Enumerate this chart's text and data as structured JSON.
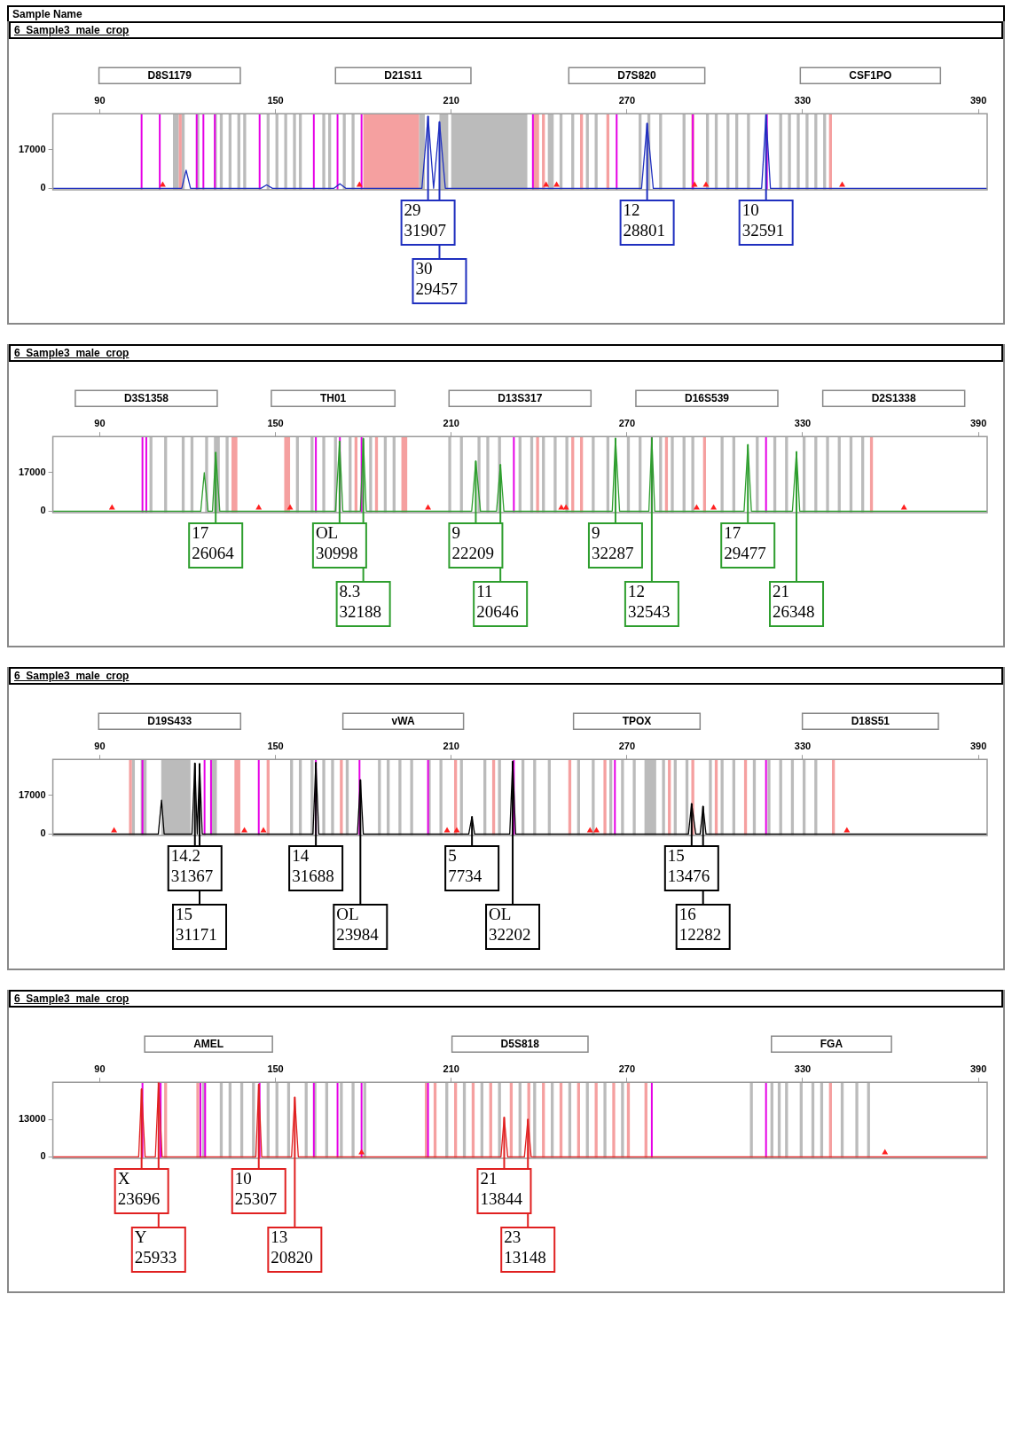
{
  "chart_data": [
    {
      "type": "line",
      "title": "6_Sample3_male_crop",
      "xlim": [
        74,
        393
      ],
      "xticks": [
        90,
        150,
        210,
        270,
        330,
        390
      ],
      "ylim": [
        0,
        33000
      ],
      "yticks": [
        0,
        17000
      ],
      "annotations": [
        "Sample Name",
        "D8S1179",
        "D21S11",
        "D7S820",
        "CSF1PO",
        {
          "text": "29\n31907",
          "x": 202.1,
          "y": 31907
        },
        {
          "text": "30\n29457",
          "x": 206.0,
          "y": 29457
        },
        {
          "text": "12\n28801",
          "x": 276.9,
          "y": 28801
        },
        {
          "text": "10\n32591",
          "x": 317.5,
          "y": 32591
        }
      ],
      "bands": [
        {
          "axis": "x",
          "from": 115,
          "to": 117,
          "color": "#bbbbbb"
        },
        {
          "axis": "x",
          "from": 118,
          "to": 119,
          "color": "#bbbbbb"
        },
        {
          "axis": "x",
          "from": 123,
          "to": 124,
          "color": "#bbbbbb"
        },
        {
          "axis": "x",
          "from": 129,
          "to": 130,
          "color": "#bbbbbb"
        },
        {
          "axis": "x",
          "from": 131,
          "to": 132,
          "color": "#bbbbbb"
        },
        {
          "axis": "x",
          "from": 134,
          "to": 135,
          "color": "#bbbbbb"
        },
        {
          "axis": "x",
          "from": 137,
          "to": 138,
          "color": "#bbbbbb"
        },
        {
          "axis": "x",
          "from": 139,
          "to": 140,
          "color": "#bbbbbb"
        },
        {
          "axis": "x",
          "from": 147,
          "to": 148,
          "color": "#bbbbbb"
        },
        {
          "axis": "x",
          "from": 150,
          "to": 151,
          "color": "#bbbbbb"
        },
        {
          "axis": "x",
          "from": 153,
          "to": 154,
          "color": "#bbbbbb"
        },
        {
          "axis": "x",
          "from": 156,
          "to": 157,
          "color": "#bbbbbb"
        },
        {
          "axis": "x",
          "from": 158,
          "to": 159,
          "color": "#bbbbbb"
        },
        {
          "axis": "x",
          "from": 166,
          "to": 167,
          "color": "#bbbbbb"
        },
        {
          "axis": "x",
          "from": 168,
          "to": 169,
          "color": "#bbbbbb"
        },
        {
          "axis": "x",
          "from": 173,
          "to": 174,
          "color": "#bbbbbb"
        },
        {
          "axis": "x",
          "from": 176,
          "to": 177,
          "color": "#bbbbbb"
        },
        {
          "axis": "x",
          "from": 199,
          "to": 201,
          "color": "#bbbbbb"
        },
        {
          "axis": "x",
          "from": 206,
          "to": 209,
          "color": "#bbbbbb"
        },
        {
          "axis": "x",
          "from": 210,
          "to": 236,
          "color": "#bbbbbb"
        },
        {
          "axis": "x",
          "from": 243,
          "to": 245,
          "color": "#bbbbbb"
        },
        {
          "axis": "x",
          "from": 247,
          "to": 248,
          "color": "#bbbbbb"
        },
        {
          "axis": "x",
          "from": 251,
          "to": 252,
          "color": "#bbbbbb"
        },
        {
          "axis": "x",
          "from": 256,
          "to": 257,
          "color": "#bbbbbb"
        },
        {
          "axis": "x",
          "from": 259,
          "to": 260,
          "color": "#bbbbbb"
        },
        {
          "axis": "x",
          "from": 274,
          "to": 275,
          "color": "#bbbbbb"
        },
        {
          "axis": "x",
          "from": 277,
          "to": 278,
          "color": "#bbbbbb"
        },
        {
          "axis": "x",
          "from": 281,
          "to": 282,
          "color": "#bbbbbb"
        },
        {
          "axis": "x",
          "from": 289,
          "to": 290,
          "color": "#bbbbbb"
        },
        {
          "axis": "x",
          "from": 297,
          "to": 298,
          "color": "#bbbbbb"
        },
        {
          "axis": "x",
          "from": 300,
          "to": 301,
          "color": "#bbbbbb"
        },
        {
          "axis": "x",
          "from": 304,
          "to": 305,
          "color": "#bbbbbb"
        },
        {
          "axis": "x",
          "from": 307,
          "to": 308,
          "color": "#bbbbbb"
        },
        {
          "axis": "x",
          "from": 311,
          "to": 312,
          "color": "#bbbbbb"
        },
        {
          "axis": "x",
          "from": 322,
          "to": 323,
          "color": "#bbbbbb"
        },
        {
          "axis": "x",
          "from": 325,
          "to": 326,
          "color": "#bbbbbb"
        },
        {
          "axis": "x",
          "from": 328,
          "to": 329,
          "color": "#bbbbbb"
        },
        {
          "axis": "x",
          "from": 331,
          "to": 332,
          "color": "#bbbbbb"
        },
        {
          "axis": "x",
          "from": 334,
          "to": 335,
          "color": "#bbbbbb"
        },
        {
          "axis": "x",
          "from": 337,
          "to": 338,
          "color": "#bbbbbb"
        },
        {
          "axis": "x",
          "from": 117,
          "to": 118,
          "color": "#f5a0a0"
        },
        {
          "axis": "x",
          "from": 180,
          "to": 199,
          "color": "#f5a0a0"
        },
        {
          "axis": "x",
          "from": 238,
          "to": 240,
          "color": "#f5a0a0"
        },
        {
          "axis": "x",
          "from": 241,
          "to": 242,
          "color": "#f5a0a0"
        },
        {
          "axis": "x",
          "from": 254,
          "to": 255,
          "color": "#f5a0a0"
        },
        {
          "axis": "x",
          "from": 263,
          "to": 264,
          "color": "#f5a0a0"
        },
        {
          "axis": "x",
          "from": 292,
          "to": 293,
          "color": "#f5a0a0"
        },
        {
          "axis": "x",
          "from": 339,
          "to": 340,
          "color": "#f5a0a0"
        }
      ],
      "ref_lines": [
        {
          "axis": "x",
          "value": 104.3,
          "color": "#e600e6"
        },
        {
          "axis": "x",
          "value": 110.5,
          "color": "#e600e6"
        },
        {
          "axis": "x",
          "value": 123.1,
          "color": "#e600e6"
        },
        {
          "axis": "x",
          "value": 125.4,
          "color": "#e600e6"
        },
        {
          "axis": "x",
          "value": 129.3,
          "color": "#e600e6"
        },
        {
          "axis": "x",
          "value": 144.6,
          "color": "#e600e6"
        },
        {
          "axis": "x",
          "value": 163.1,
          "color": "#e600e6"
        },
        {
          "axis": "x",
          "value": 171.2,
          "color": "#e600e6"
        },
        {
          "axis": "x",
          "value": 179.4,
          "color": "#e600e6"
        },
        {
          "axis": "x",
          "value": 237.9,
          "color": "#e600e6"
        },
        {
          "axis": "x",
          "value": 266.5,
          "color": "#e600e6"
        },
        {
          "axis": "x",
          "value": 292.5,
          "color": "#e600e6"
        },
        {
          "axis": "x",
          "value": 317.8,
          "color": "#e600e6"
        }
      ],
      "series": [
        {
          "type": "line",
          "color": "#1f2fbf",
          "x": [
            74,
            118,
            119.5,
            121,
            145,
            147,
            149,
            170,
            172,
            174,
            200,
            202.1,
            204,
            206,
            208,
            275,
            276.9,
            279,
            316,
            317.5,
            319,
            393
          ],
          "values": [
            0,
            0,
            8000,
            0,
            0,
            1500,
            0,
            0,
            2000,
            0,
            0,
            31907,
            0,
            29457,
            0,
            0,
            28801,
            0,
            0,
            32591,
            0,
            0
          ]
        },
        {
          "type": "scatter",
          "marker": "triangle",
          "color": "#ff2020",
          "x": [
            111.5,
            178.7,
            242.4,
            246.0,
            293.1,
            297.0,
            343.5
          ],
          "values": [
            1500,
            1500,
            1500,
            1500,
            1500,
            1500,
            1500
          ]
        }
      ]
    },
    {
      "type": "line",
      "title": "6_Sample3_male_crop",
      "xlim": [
        74,
        393
      ],
      "xticks": [
        90,
        150,
        210,
        270,
        330,
        390
      ],
      "ylim": [
        0,
        33000
      ],
      "yticks": [
        0,
        17000
      ],
      "annotations": [
        "D3S1358",
        "TH01",
        "D13S317",
        "D16S539",
        "D2S1338",
        {
          "text": "17\n26064",
          "x": 129.6,
          "y": 26064
        },
        {
          "text": "OL\n30998",
          "x": 171.9,
          "y": 30998
        },
        {
          "text": "8.3\n32188",
          "x": 180.0,
          "y": 32188
        },
        {
          "text": "9\n22209",
          "x": 218.4,
          "y": 22209
        },
        {
          "text": "11\n20646",
          "x": 226.8,
          "y": 20646
        },
        {
          "text": "9\n32287",
          "x": 266.1,
          "y": 32287
        },
        {
          "text": "12\n32543",
          "x": 278.5,
          "y": 32543
        },
        {
          "text": "17\n29477",
          "x": 311.3,
          "y": 29477
        },
        {
          "text": "21\n26348",
          "x": 327.9,
          "y": 26348
        }
      ],
      "bands": [
        {
          "axis": "x",
          "from": 107,
          "to": 108,
          "color": "#bbbbbb"
        },
        {
          "axis": "x",
          "from": 112,
          "to": 113,
          "color": "#bbbbbb"
        },
        {
          "axis": "x",
          "from": 118,
          "to": 119,
          "color": "#bbbbbb"
        },
        {
          "axis": "x",
          "from": 121,
          "to": 122,
          "color": "#bbbbbb"
        },
        {
          "axis": "x",
          "from": 126,
          "to": 127,
          "color": "#bbbbbb"
        },
        {
          "axis": "x",
          "from": 129,
          "to": 131,
          "color": "#bbbbbb"
        },
        {
          "axis": "x",
          "from": 133,
          "to": 134,
          "color": "#bbbbbb"
        },
        {
          "axis": "x",
          "from": 157,
          "to": 158,
          "color": "#bbbbbb"
        },
        {
          "axis": "x",
          "from": 162,
          "to": 163,
          "color": "#bbbbbb"
        },
        {
          "axis": "x",
          "from": 166,
          "to": 167,
          "color": "#bbbbbb"
        },
        {
          "axis": "x",
          "from": 170,
          "to": 171,
          "color": "#bbbbbb"
        },
        {
          "axis": "x",
          "from": 175,
          "to": 176,
          "color": "#bbbbbb"
        },
        {
          "axis": "x",
          "from": 182,
          "to": 183,
          "color": "#bbbbbb"
        },
        {
          "axis": "x",
          "from": 187,
          "to": 188,
          "color": "#bbbbbb"
        },
        {
          "axis": "x",
          "from": 190,
          "to": 191,
          "color": "#bbbbbb"
        },
        {
          "axis": "x",
          "from": 209,
          "to": 210,
          "color": "#bbbbbb"
        },
        {
          "axis": "x",
          "from": 213,
          "to": 214,
          "color": "#bbbbbb"
        },
        {
          "axis": "x",
          "from": 219,
          "to": 220,
          "color": "#bbbbbb"
        },
        {
          "axis": "x",
          "from": 222,
          "to": 223,
          "color": "#bbbbbb"
        },
        {
          "axis": "x",
          "from": 226,
          "to": 227,
          "color": "#bbbbbb"
        },
        {
          "axis": "x",
          "from": 233,
          "to": 234,
          "color": "#bbbbbb"
        },
        {
          "axis": "x",
          "from": 237,
          "to": 238,
          "color": "#bbbbbb"
        },
        {
          "axis": "x",
          "from": 241,
          "to": 242,
          "color": "#bbbbbb"
        },
        {
          "axis": "x",
          "from": 245,
          "to": 246,
          "color": "#bbbbbb"
        },
        {
          "axis": "x",
          "from": 249,
          "to": 250,
          "color": "#bbbbbb"
        },
        {
          "axis": "x",
          "from": 258,
          "to": 259,
          "color": "#bbbbbb"
        },
        {
          "axis": "x",
          "from": 263,
          "to": 264,
          "color": "#bbbbbb"
        },
        {
          "axis": "x",
          "from": 270,
          "to": 271,
          "color": "#bbbbbb"
        },
        {
          "axis": "x",
          "from": 274,
          "to": 275,
          "color": "#bbbbbb"
        },
        {
          "axis": "x",
          "from": 281,
          "to": 282,
          "color": "#bbbbbb"
        },
        {
          "axis": "x",
          "from": 285,
          "to": 286,
          "color": "#bbbbbb"
        },
        {
          "axis": "x",
          "from": 289,
          "to": 290,
          "color": "#bbbbbb"
        },
        {
          "axis": "x",
          "from": 292,
          "to": 293,
          "color": "#bbbbbb"
        },
        {
          "axis": "x",
          "from": 302,
          "to": 303,
          "color": "#bbbbbb"
        },
        {
          "axis": "x",
          "from": 306,
          "to": 307,
          "color": "#bbbbbb"
        },
        {
          "axis": "x",
          "from": 314,
          "to": 315,
          "color": "#bbbbbb"
        },
        {
          "axis": "x",
          "from": 320,
          "to": 321,
          "color": "#bbbbbb"
        },
        {
          "axis": "x",
          "from": 324,
          "to": 325,
          "color": "#bbbbbb"
        },
        {
          "axis": "x",
          "from": 330,
          "to": 331,
          "color": "#bbbbbb"
        },
        {
          "axis": "x",
          "from": 334,
          "to": 335,
          "color": "#bbbbbb"
        },
        {
          "axis": "x",
          "from": 338,
          "to": 339,
          "color": "#bbbbbb"
        },
        {
          "axis": "x",
          "from": 342,
          "to": 343,
          "color": "#bbbbbb"
        },
        {
          "axis": "x",
          "from": 346,
          "to": 347,
          "color": "#bbbbbb"
        },
        {
          "axis": "x",
          "from": 350,
          "to": 351,
          "color": "#bbbbbb"
        },
        {
          "axis": "x",
          "from": 135,
          "to": 137,
          "color": "#f5a0a0"
        },
        {
          "axis": "x",
          "from": 153,
          "to": 155,
          "color": "#f5a0a0"
        },
        {
          "axis": "x",
          "from": 177,
          "to": 178,
          "color": "#f5a0a0"
        },
        {
          "axis": "x",
          "from": 184,
          "to": 185,
          "color": "#f5a0a0"
        },
        {
          "axis": "x",
          "from": 193,
          "to": 195,
          "color": "#f5a0a0"
        },
        {
          "axis": "x",
          "from": 239,
          "to": 240,
          "color": "#f5a0a0"
        },
        {
          "axis": "x",
          "from": 251,
          "to": 252,
          "color": "#f5a0a0"
        },
        {
          "axis": "x",
          "from": 254,
          "to": 255,
          "color": "#f5a0a0"
        },
        {
          "axis": "x",
          "from": 283,
          "to": 284,
          "color": "#f5a0a0"
        },
        {
          "axis": "x",
          "from": 296,
          "to": 297,
          "color": "#f5a0a0"
        },
        {
          "axis": "x",
          "from": 353,
          "to": 354,
          "color": "#f5a0a0"
        }
      ],
      "ref_lines": [
        {
          "axis": "x",
          "value": 104.6,
          "color": "#e600e6"
        },
        {
          "axis": "x",
          "value": 105.9,
          "color": "#e600e6"
        },
        {
          "axis": "x",
          "value": 163.8,
          "color": "#e600e6"
        },
        {
          "axis": "x",
          "value": 172.0,
          "color": "#e600e6"
        },
        {
          "axis": "x",
          "value": 179.4,
          "color": "#e600e6"
        },
        {
          "axis": "x",
          "value": 231.4,
          "color": "#e600e6"
        },
        {
          "axis": "x",
          "value": 278.5,
          "color": "#e600e6"
        },
        {
          "axis": "x",
          "value": 317.5,
          "color": "#e600e6"
        }
      ],
      "series": [
        {
          "type": "line",
          "color": "#2e9e2e",
          "x": [
            74,
            124.5,
            125.7,
            127,
            128.5,
            129.6,
            131,
            170.5,
            171.9,
            173,
            179,
            180.0,
            181,
            217,
            218.4,
            220,
            225.5,
            226.8,
            228,
            265,
            266.1,
            267.5,
            277.5,
            278.5,
            279.5,
            310,
            311.3,
            312.5,
            326.5,
            327.9,
            329,
            393
          ],
          "values": [
            0,
            0,
            17000,
            0,
            0,
            26064,
            0,
            0,
            30998,
            0,
            0,
            32188,
            0,
            0,
            22209,
            0,
            0,
            20646,
            0,
            0,
            32287,
            0,
            0,
            32543,
            0,
            0,
            29477,
            0,
            0,
            26348,
            0,
            0
          ]
        },
        {
          "type": "scatter",
          "marker": "triangle",
          "color": "#ff2020",
          "x": [
            94.2,
            144.3,
            155.0,
            202.1,
            247.6,
            249.2,
            293.8,
            299.6,
            364.6
          ],
          "values": [
            1500,
            1500,
            1500,
            1500,
            1500,
            1500,
            1500,
            1500,
            1500
          ]
        }
      ]
    },
    {
      "type": "line",
      "title": "6_Sample3_male_crop",
      "xlim": [
        74,
        393
      ],
      "xticks": [
        90,
        150,
        210,
        270,
        330,
        390
      ],
      "ylim": [
        0,
        33000
      ],
      "yticks": [
        0,
        17000
      ],
      "annotations": [
        "D19S433",
        "vWA",
        "TPOX",
        "D18S51",
        {
          "text": "14.2\n31367",
          "x": 122.5,
          "y": 31367
        },
        {
          "text": "15\n31171",
          "x": 124.1,
          "y": 31171
        },
        {
          "text": "14\n31688",
          "x": 163.8,
          "y": 31688
        },
        {
          "text": "OL\n23984",
          "x": 179.0,
          "y": 23984
        },
        {
          "text": "5\n7734",
          "x": 217.1,
          "y": 7734
        },
        {
          "text": "OL\n32202",
          "x": 231.0,
          "y": 32202
        },
        {
          "text": "15\n13476",
          "x": 292.1,
          "y": 13476
        },
        {
          "text": "16\n12282",
          "x": 296.0,
          "y": 12282
        }
      ],
      "bands": [
        {
          "axis": "x",
          "from": 101,
          "to": 102,
          "color": "#bbbbbb"
        },
        {
          "axis": "x",
          "from": 104,
          "to": 106,
          "color": "#bbbbbb"
        },
        {
          "axis": "x",
          "from": 111,
          "to": 121,
          "color": "#bbbbbb"
        },
        {
          "axis": "x",
          "from": 128,
          "to": 130,
          "color": "#bbbbbb"
        },
        {
          "axis": "x",
          "from": 155,
          "to": 156,
          "color": "#bbbbbb"
        },
        {
          "axis": "x",
          "from": 158,
          "to": 159,
          "color": "#bbbbbb"
        },
        {
          "axis": "x",
          "from": 162,
          "to": 163,
          "color": "#bbbbbb"
        },
        {
          "axis": "x",
          "from": 166,
          "to": 167,
          "color": "#bbbbbb"
        },
        {
          "axis": "x",
          "from": 169,
          "to": 170,
          "color": "#bbbbbb"
        },
        {
          "axis": "x",
          "from": 174,
          "to": 175,
          "color": "#bbbbbb"
        },
        {
          "axis": "x",
          "from": 185,
          "to": 186,
          "color": "#bbbbbb"
        },
        {
          "axis": "x",
          "from": 188,
          "to": 189,
          "color": "#bbbbbb"
        },
        {
          "axis": "x",
          "from": 192,
          "to": 193,
          "color": "#bbbbbb"
        },
        {
          "axis": "x",
          "from": 196,
          "to": 197,
          "color": "#bbbbbb"
        },
        {
          "axis": "x",
          "from": 202,
          "to": 203,
          "color": "#bbbbbb"
        },
        {
          "axis": "x",
          "from": 206,
          "to": 207,
          "color": "#bbbbbb"
        },
        {
          "axis": "x",
          "from": 213,
          "to": 214,
          "color": "#bbbbbb"
        },
        {
          "axis": "x",
          "from": 221,
          "to": 222,
          "color": "#bbbbbb"
        },
        {
          "axis": "x",
          "from": 226,
          "to": 227,
          "color": "#bbbbbb"
        },
        {
          "axis": "x",
          "from": 234,
          "to": 235,
          "color": "#bbbbbb"
        },
        {
          "axis": "x",
          "from": 238,
          "to": 239,
          "color": "#bbbbbb"
        },
        {
          "axis": "x",
          "from": 243,
          "to": 244,
          "color": "#bbbbbb"
        },
        {
          "axis": "x",
          "from": 253,
          "to": 254,
          "color": "#bbbbbb"
        },
        {
          "axis": "x",
          "from": 258,
          "to": 259,
          "color": "#bbbbbb"
        },
        {
          "axis": "x",
          "from": 264,
          "to": 265,
          "color": "#bbbbbb"
        },
        {
          "axis": "x",
          "from": 268,
          "to": 269,
          "color": "#bbbbbb"
        },
        {
          "axis": "x",
          "from": 272,
          "to": 273,
          "color": "#bbbbbb"
        },
        {
          "axis": "x",
          "from": 276,
          "to": 280,
          "color": "#bbbbbb"
        },
        {
          "axis": "x",
          "from": 282,
          "to": 283,
          "color": "#bbbbbb"
        },
        {
          "axis": "x",
          "from": 286,
          "to": 287,
          "color": "#bbbbbb"
        },
        {
          "axis": "x",
          "from": 290,
          "to": 291,
          "color": "#bbbbbb"
        },
        {
          "axis": "x",
          "from": 298,
          "to": 299,
          "color": "#bbbbbb"
        },
        {
          "axis": "x",
          "from": 302,
          "to": 303,
          "color": "#bbbbbb"
        },
        {
          "axis": "x",
          "from": 306,
          "to": 307,
          "color": "#bbbbbb"
        },
        {
          "axis": "x",
          "from": 313,
          "to": 314,
          "color": "#bbbbbb"
        },
        {
          "axis": "x",
          "from": 318,
          "to": 319,
          "color": "#bbbbbb"
        },
        {
          "axis": "x",
          "from": 322,
          "to": 323,
          "color": "#bbbbbb"
        },
        {
          "axis": "x",
          "from": 326,
          "to": 327,
          "color": "#bbbbbb"
        },
        {
          "axis": "x",
          "from": 330,
          "to": 331,
          "color": "#bbbbbb"
        },
        {
          "axis": "x",
          "from": 334,
          "to": 335,
          "color": "#bbbbbb"
        },
        {
          "axis": "x",
          "from": 100,
          "to": 101,
          "color": "#f5a0a0"
        },
        {
          "axis": "x",
          "from": 136,
          "to": 138,
          "color": "#f5a0a0"
        },
        {
          "axis": "x",
          "from": 147,
          "to": 148,
          "color": "#f5a0a0"
        },
        {
          "axis": "x",
          "from": 172,
          "to": 173,
          "color": "#f5a0a0"
        },
        {
          "axis": "x",
          "from": 211,
          "to": 212,
          "color": "#f5a0a0"
        },
        {
          "axis": "x",
          "from": 224,
          "to": 225,
          "color": "#f5a0a0"
        },
        {
          "axis": "x",
          "from": 250,
          "to": 251,
          "color": "#f5a0a0"
        },
        {
          "axis": "x",
          "from": 262,
          "to": 263,
          "color": "#f5a0a0"
        },
        {
          "axis": "x",
          "from": 284,
          "to": 285,
          "color": "#f5a0a0"
        },
        {
          "axis": "x",
          "from": 292,
          "to": 293,
          "color": "#f5a0a0"
        },
        {
          "axis": "x",
          "from": 300,
          "to": 301,
          "color": "#f5a0a0"
        },
        {
          "axis": "x",
          "from": 310,
          "to": 311,
          "color": "#f5a0a0"
        },
        {
          "axis": "x",
          "from": 340,
          "to": 341,
          "color": "#f5a0a0"
        }
      ],
      "ref_lines": [
        {
          "axis": "x",
          "value": 104.6,
          "color": "#e600e6"
        },
        {
          "axis": "x",
          "value": 125.8,
          "color": "#e600e6"
        },
        {
          "axis": "x",
          "value": 128.0,
          "color": "#e600e6"
        },
        {
          "axis": "x",
          "value": 144.3,
          "color": "#e600e6"
        },
        {
          "axis": "x",
          "value": 163.8,
          "color": "#e600e6"
        },
        {
          "axis": "x",
          "value": 178.7,
          "color": "#e600e6"
        },
        {
          "axis": "x",
          "value": 202.1,
          "color": "#e600e6"
        },
        {
          "axis": "x",
          "value": 231.4,
          "color": "#e600e6"
        },
        {
          "axis": "x",
          "value": 265.9,
          "color": "#e600e6"
        },
        {
          "axis": "x",
          "value": 317.5,
          "color": "#e600e6"
        }
      ],
      "series": [
        {
          "type": "line",
          "color": "#000000",
          "x": [
            74,
            110,
            111.1,
            112,
            121.5,
            122.5,
            123.3,
            124.1,
            125,
            162.8,
            163.8,
            164.8,
            178,
            179.0,
            180,
            216,
            217.1,
            218,
            230,
            231.0,
            232,
            291,
            292.1,
            293.5,
            295,
            296.0,
            297,
            393
          ],
          "values": [
            0,
            0,
            15000,
            0,
            0,
            31367,
            0,
            31171,
            0,
            0,
            31688,
            0,
            0,
            23984,
            0,
            0,
            7734,
            0,
            0,
            32202,
            0,
            0,
            13476,
            0,
            0,
            12282,
            0,
            0
          ]
        },
        {
          "type": "scatter",
          "marker": "triangle",
          "color": "#ff2020",
          "x": [
            94.9,
            139.4,
            145.9,
            208.6,
            211.9,
            257.4,
            259.6,
            345.1
          ],
          "values": [
            1500,
            1500,
            1500,
            1500,
            1500,
            1500,
            1500,
            1500
          ]
        }
      ]
    },
    {
      "type": "line",
      "title": "6_Sample3_male_crop",
      "xlim": [
        74,
        393
      ],
      "xticks": [
        90,
        150,
        210,
        270,
        330,
        390
      ],
      "ylim": [
        0,
        26000
      ],
      "yticks": [
        0,
        13000
      ],
      "annotations": [
        "AMEL",
        "D5S818",
        "FGA",
        {
          "text": "X\n23696",
          "x": 104.3,
          "y": 23696
        },
        {
          "text": "Y\n25933",
          "x": 110.1,
          "y": 25933
        },
        {
          "text": "10\n25307",
          "x": 144.3,
          "y": 25307
        },
        {
          "text": "13\n20820",
          "x": 156.6,
          "y": 20820
        },
        {
          "text": "21\n13844",
          "x": 228.1,
          "y": 13844
        },
        {
          "text": "23\n13148",
          "x": 236.2,
          "y": 13148
        }
      ],
      "bands": [
        {
          "axis": "x",
          "from": 125,
          "to": 126,
          "color": "#bbbbbb"
        },
        {
          "axis": "x",
          "from": 131,
          "to": 132,
          "color": "#bbbbbb"
        },
        {
          "axis": "x",
          "from": 134,
          "to": 135,
          "color": "#bbbbbb"
        },
        {
          "axis": "x",
          "from": 138,
          "to": 139,
          "color": "#bbbbbb"
        },
        {
          "axis": "x",
          "from": 142,
          "to": 143,
          "color": "#bbbbbb"
        },
        {
          "axis": "x",
          "from": 147,
          "to": 148,
          "color": "#bbbbbb"
        },
        {
          "axis": "x",
          "from": 150,
          "to": 151,
          "color": "#bbbbbb"
        },
        {
          "axis": "x",
          "from": 154,
          "to": 155,
          "color": "#bbbbbb"
        },
        {
          "axis": "x",
          "from": 160,
          "to": 161,
          "color": "#bbbbbb"
        },
        {
          "axis": "x",
          "from": 163,
          "to": 164,
          "color": "#bbbbbb"
        },
        {
          "axis": "x",
          "from": 167,
          "to": 168,
          "color": "#bbbbbb"
        },
        {
          "axis": "x",
          "from": 172,
          "to": 173,
          "color": "#bbbbbb"
        },
        {
          "axis": "x",
          "from": 176,
          "to": 177,
          "color": "#bbbbbb"
        },
        {
          "axis": "x",
          "from": 180,
          "to": 181,
          "color": "#bbbbbb"
        },
        {
          "axis": "x",
          "from": 208,
          "to": 209,
          "color": "#bbbbbb"
        },
        {
          "axis": "x",
          "from": 214,
          "to": 215,
          "color": "#bbbbbb"
        },
        {
          "axis": "x",
          "from": 220,
          "to": 221,
          "color": "#bbbbbb"
        },
        {
          "axis": "x",
          "from": 226,
          "to": 227,
          "color": "#bbbbbb"
        },
        {
          "axis": "x",
          "from": 233,
          "to": 234,
          "color": "#bbbbbb"
        },
        {
          "axis": "x",
          "from": 238,
          "to": 239,
          "color": "#bbbbbb"
        },
        {
          "axis": "x",
          "from": 244,
          "to": 245,
          "color": "#bbbbbb"
        },
        {
          "axis": "x",
          "from": 250,
          "to": 251,
          "color": "#bbbbbb"
        },
        {
          "axis": "x",
          "from": 256,
          "to": 257,
          "color": "#bbbbbb"
        },
        {
          "axis": "x",
          "from": 262,
          "to": 263,
          "color": "#bbbbbb"
        },
        {
          "axis": "x",
          "from": 268,
          "to": 269,
          "color": "#bbbbbb"
        },
        {
          "axis": "x",
          "from": 312,
          "to": 313,
          "color": "#bbbbbb"
        },
        {
          "axis": "x",
          "from": 319,
          "to": 320,
          "color": "#bbbbbb"
        },
        {
          "axis": "x",
          "from": 321.5,
          "to": 322.5,
          "color": "#bbbbbb"
        },
        {
          "axis": "x",
          "from": 324,
          "to": 325,
          "color": "#bbbbbb"
        },
        {
          "axis": "x",
          "from": 329,
          "to": 330,
          "color": "#bbbbbb"
        },
        {
          "axis": "x",
          "from": 333,
          "to": 334,
          "color": "#bbbbbb"
        },
        {
          "axis": "x",
          "from": 336,
          "to": 337,
          "color": "#bbbbbb"
        },
        {
          "axis": "x",
          "from": 343,
          "to": 344,
          "color": "#bbbbbb"
        },
        {
          "axis": "x",
          "from": 348,
          "to": 349,
          "color": "#bbbbbb"
        },
        {
          "axis": "x",
          "from": 352,
          "to": 353,
          "color": "#bbbbbb"
        },
        {
          "axis": "x",
          "from": 112,
          "to": 113,
          "color": "#f5a0a0"
        },
        {
          "axis": "x",
          "from": 123,
          "to": 124,
          "color": "#f5a0a0"
        },
        {
          "axis": "x",
          "from": 201,
          "to": 202,
          "color": "#f5a0a0"
        },
        {
          "axis": "x",
          "from": 204,
          "to": 205,
          "color": "#f5a0a0"
        },
        {
          "axis": "x",
          "from": 211,
          "to": 212,
          "color": "#f5a0a0"
        },
        {
          "axis": "x",
          "from": 217,
          "to": 218,
          "color": "#f5a0a0"
        },
        {
          "axis": "x",
          "from": 223,
          "to": 224,
          "color": "#f5a0a0"
        },
        {
          "axis": "x",
          "from": 230,
          "to": 231,
          "color": "#f5a0a0"
        },
        {
          "axis": "x",
          "from": 236,
          "to": 237,
          "color": "#f5a0a0"
        },
        {
          "axis": "x",
          "from": 241,
          "to": 242,
          "color": "#f5a0a0"
        },
        {
          "axis": "x",
          "from": 247,
          "to": 248,
          "color": "#f5a0a0"
        },
        {
          "axis": "x",
          "from": 253,
          "to": 254,
          "color": "#f5a0a0"
        },
        {
          "axis": "x",
          "from": 259,
          "to": 260,
          "color": "#f5a0a0"
        },
        {
          "axis": "x",
          "from": 265,
          "to": 266,
          "color": "#f5a0a0"
        },
        {
          "axis": "x",
          "from": 270,
          "to": 271,
          "color": "#f5a0a0"
        },
        {
          "axis": "x",
          "from": 276,
          "to": 277,
          "color": "#f5a0a0"
        },
        {
          "axis": "x",
          "from": 339,
          "to": 340,
          "color": "#f5a0a0"
        }
      ],
      "ref_lines": [
        {
          "axis": "x",
          "value": 104.6,
          "color": "#e600e6"
        },
        {
          "axis": "x",
          "value": 110.8,
          "color": "#e600e6"
        },
        {
          "axis": "x",
          "value": 124.4,
          "color": "#e600e6"
        },
        {
          "axis": "x",
          "value": 126.0,
          "color": "#e600e6"
        },
        {
          "axis": "x",
          "value": 144.6,
          "color": "#e600e6"
        },
        {
          "axis": "x",
          "value": 163.1,
          "color": "#e600e6"
        },
        {
          "axis": "x",
          "value": 171.2,
          "color": "#e600e6"
        },
        {
          "axis": "x",
          "value": 179.4,
          "color": "#e600e6"
        },
        {
          "axis": "x",
          "value": 202.1,
          "color": "#e600e6"
        },
        {
          "axis": "x",
          "value": 278.5,
          "color": "#e600e6"
        },
        {
          "axis": "x",
          "value": 317.5,
          "color": "#e600e6"
        }
      ],
      "series": [
        {
          "type": "line",
          "color": "#e02020",
          "x": [
            74,
            103.3,
            104.3,
            105.5,
            109,
            110.1,
            111.3,
            143.3,
            144.3,
            145.3,
            155.5,
            156.6,
            157.8,
            227,
            228.1,
            229.3,
            235,
            236.2,
            237.3,
            393
          ],
          "values": [
            0,
            0,
            23696,
            0,
            0,
            25933,
            0,
            0,
            25307,
            0,
            0,
            20820,
            0,
            0,
            13844,
            0,
            0,
            13148,
            0,
            0
          ]
        },
        {
          "type": "scatter",
          "marker": "triangle",
          "color": "#ff2020",
          "x": [
            179.4,
            358.1
          ],
          "values": [
            1500,
            1500
          ]
        }
      ]
    }
  ]
}
